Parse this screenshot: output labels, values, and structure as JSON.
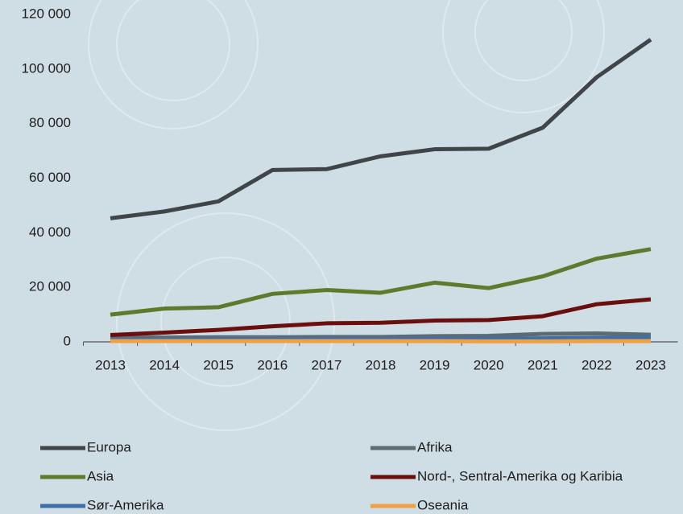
{
  "chart_data": {
    "type": "line",
    "categories": [
      "2013",
      "2014",
      "2015",
      "2016",
      "2017",
      "2018",
      "2019",
      "2020",
      "2021",
      "2022",
      "2023"
    ],
    "series": [
      {
        "name": "Europa",
        "color": "#404549",
        "values": [
          45300,
          47800,
          51500,
          63000,
          63300,
          68000,
          70600,
          70800,
          78500,
          97000,
          110800
        ]
      },
      {
        "name": "Afrika",
        "color": "#5f6b73",
        "values": [
          1500,
          1600,
          1700,
          1700,
          1800,
          1800,
          2100,
          2200,
          2900,
          3100,
          2600
        ]
      },
      {
        "name": "Asia",
        "color": "#5e7a2c",
        "values": [
          10000,
          12200,
          12700,
          17600,
          19000,
          18000,
          21700,
          19700,
          24000,
          30500,
          34000
        ]
      },
      {
        "name": "Nord-, Sentral-Amerika og Karibia",
        "color": "#6b0e0e",
        "values": [
          2500,
          3400,
          4400,
          5700,
          6800,
          7000,
          7800,
          8000,
          9400,
          13800,
          15600
        ]
      },
      {
        "name": "Sør-Amerika",
        "color": "#3f6fa6",
        "values": [
          800,
          900,
          1000,
          1000,
          1100,
          1100,
          1200,
          1200,
          1300,
          1500,
          1700
        ]
      },
      {
        "name": "Oseania",
        "color": "#f0a040",
        "values": [
          300,
          300,
          300,
          300,
          300,
          300,
          300,
          200,
          200,
          300,
          300
        ]
      }
    ],
    "ylim": [
      0,
      120000
    ],
    "yticks": [
      0,
      {
        "value": 20000,
        "label": "20 000"
      },
      {
        "value": 40000,
        "label": "40 000"
      },
      {
        "value": 60000,
        "label": "60 000"
      },
      {
        "value": 80000,
        "label": "80 000"
      },
      {
        "value": 100000,
        "label": "100 000"
      },
      {
        "value": 120000,
        "label": "120 000"
      }
    ],
    "grid": false,
    "legend": "bottom"
  }
}
